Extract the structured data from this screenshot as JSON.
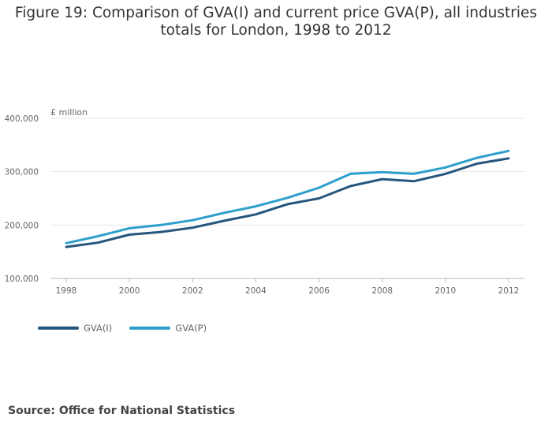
{
  "title_line1": "Figure 19: Comparison of GVA(I) and current price GVA(P), all industries",
  "title_line2": "totals for London, 1998 to 2012",
  "source": "Source: Office for National Statistics",
  "chart_data": {
    "type": "line",
    "title": "Figure 19: Comparison of GVA(I) and current price GVA(P), all industries totals for London, 1998 to 2012",
    "ylabel": "£ million",
    "xlabel": "",
    "x": [
      1998,
      1999,
      2000,
      2001,
      2002,
      2003,
      2004,
      2005,
      2006,
      2007,
      2008,
      2009,
      2010,
      2011,
      2012
    ],
    "xticks": [
      "1998",
      "2000",
      "2002",
      "2004",
      "2006",
      "2008",
      "2010",
      "2012"
    ],
    "yticks": [
      "100,000",
      "200,000",
      "300,000",
      "400,000"
    ],
    "ylim": [
      100000,
      400000
    ],
    "xlim": [
      1998,
      2012
    ],
    "grid": true,
    "legend_position": "bottom-left",
    "series": [
      {
        "name": "GVA(I)",
        "color": "#27567d",
        "values": [
          159000,
          167000,
          182000,
          187000,
          195000,
          208000,
          220000,
          239000,
          250000,
          273000,
          286000,
          282000,
          296000,
          315000,
          325000
        ]
      },
      {
        "name": "GVA(P)",
        "color": "#2e9fcc",
        "values": [
          166000,
          179000,
          194000,
          200000,
          209000,
          223000,
          235000,
          251000,
          270000,
          296000,
          299000,
          296000,
          308000,
          326000,
          339000
        ]
      }
    ]
  }
}
